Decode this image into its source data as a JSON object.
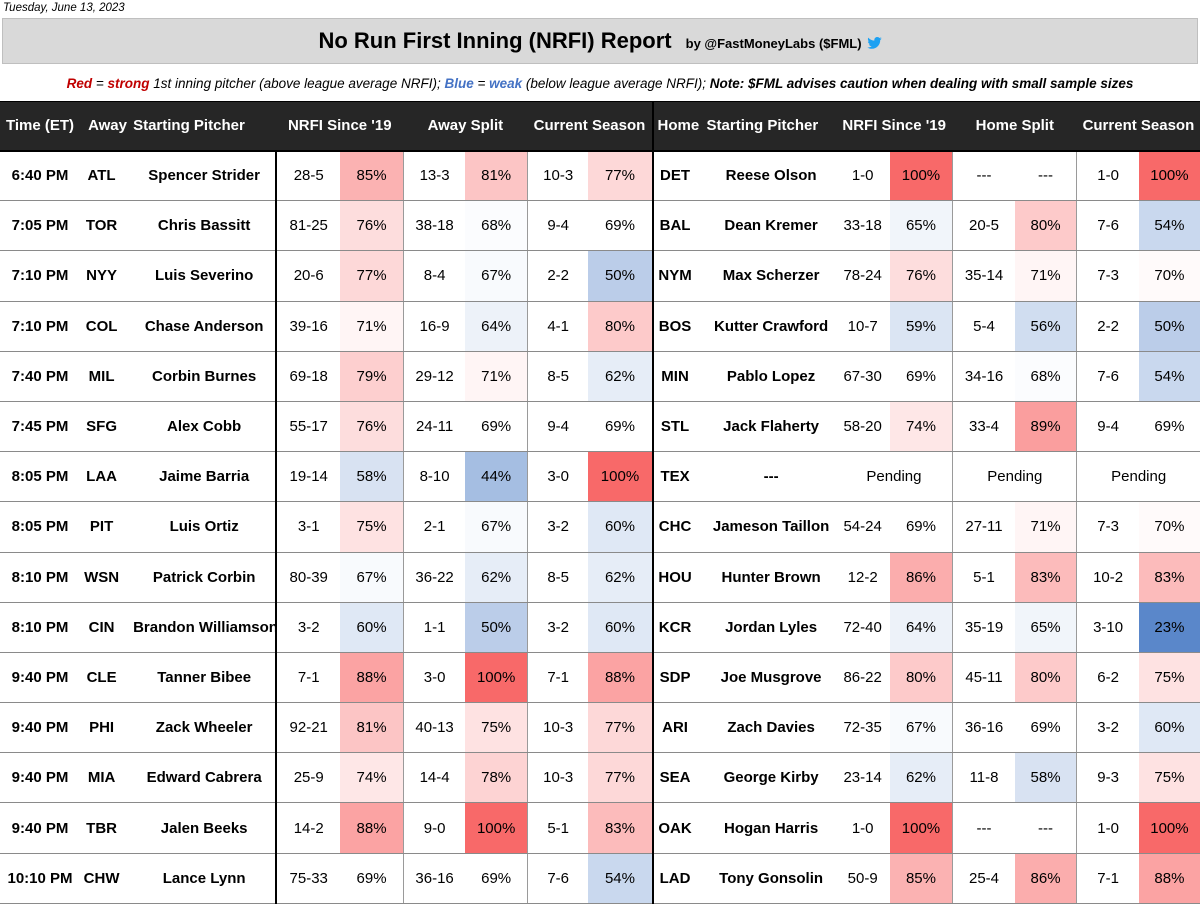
{
  "date": "Tuesday, June 13, 2023",
  "title": "No Run First Inning (NRFI) Report",
  "byline": "by @FastMoneyLabs ($FML)",
  "byline_icon": "twitter-bird-icon",
  "legend": {
    "red_word": "Red",
    "eq1": " = ",
    "strong": "strong",
    "red_desc": " 1st inning pitcher (above league average NRFI); ",
    "blue_word": "Blue",
    "eq2": " = ",
    "weak": "weak",
    "blue_desc": " (below league average NRFI); ",
    "note": "Note: $FML advises caution when dealing with small sample sizes"
  },
  "colors": {
    "header_bg": "#262626",
    "title_bg": "#d9d9d9",
    "strong_red": "#c00000",
    "weak_blue": "#4472c4"
  },
  "headers": {
    "time": "Time (ET)",
    "away": "Away",
    "away_pitcher": "Starting Pitcher",
    "away_nrfi": "NRFI Since '19",
    "away_split": "Away Split",
    "away_season": "Current Season",
    "home": "Home",
    "home_pitcher": "Starting Pitcher",
    "home_nrfi": "NRFI Since '19",
    "home_split": "Home Split",
    "home_season": "Current Season"
  },
  "rows": [
    {
      "time": "6:40 PM",
      "away": "ATL",
      "ap": "Spencer Strider",
      "an": "28-5",
      "anp": "85%",
      "as": "13-3",
      "asp": "81%",
      "ac": "10-3",
      "acp": "77%",
      "home": "DET",
      "hp": "Reese Olson",
      "hn": "1-0",
      "hnp": "100%",
      "hs": "---",
      "hsp": "---",
      "hc": "1-0",
      "hcp": "100%"
    },
    {
      "time": "7:05 PM",
      "away": "TOR",
      "ap": "Chris Bassitt",
      "an": "81-25",
      "anp": "76%",
      "as": "38-18",
      "asp": "68%",
      "ac": "9-4",
      "acp": "69%",
      "home": "BAL",
      "hp": "Dean Kremer",
      "hn": "33-18",
      "hnp": "65%",
      "hs": "20-5",
      "hsp": "80%",
      "hc": "7-6",
      "hcp": "54%"
    },
    {
      "time": "7:10 PM",
      "away": "NYY",
      "ap": "Luis Severino",
      "an": "20-6",
      "anp": "77%",
      "as": "8-4",
      "asp": "67%",
      "ac": "2-2",
      "acp": "50%",
      "home": "NYM",
      "hp": "Max Scherzer",
      "hn": "78-24",
      "hnp": "76%",
      "hs": "35-14",
      "hsp": "71%",
      "hc": "7-3",
      "hcp": "70%"
    },
    {
      "time": "7:10 PM",
      "away": "COL",
      "ap": "Chase Anderson",
      "an": "39-16",
      "anp": "71%",
      "as": "16-9",
      "asp": "64%",
      "ac": "4-1",
      "acp": "80%",
      "home": "BOS",
      "hp": "Kutter Crawford",
      "hn": "10-7",
      "hnp": "59%",
      "hs": "5-4",
      "hsp": "56%",
      "hc": "2-2",
      "hcp": "50%"
    },
    {
      "time": "7:40 PM",
      "away": "MIL",
      "ap": "Corbin Burnes",
      "an": "69-18",
      "anp": "79%",
      "as": "29-12",
      "asp": "71%",
      "ac": "8-5",
      "acp": "62%",
      "home": "MIN",
      "hp": "Pablo Lopez",
      "hn": "67-30",
      "hnp": "69%",
      "hs": "34-16",
      "hsp": "68%",
      "hc": "7-6",
      "hcp": "54%"
    },
    {
      "time": "7:45 PM",
      "away": "SFG",
      "ap": "Alex Cobb",
      "an": "55-17",
      "anp": "76%",
      "as": "24-11",
      "asp": "69%",
      "ac": "9-4",
      "acp": "69%",
      "home": "STL",
      "hp": "Jack Flaherty",
      "hn": "58-20",
      "hnp": "74%",
      "hs": "33-4",
      "hsp": "89%",
      "hc": "9-4",
      "hcp": "69%"
    },
    {
      "time": "8:05 PM",
      "away": "LAA",
      "ap": "Jaime Barria",
      "an": "19-14",
      "anp": "58%",
      "as": "8-10",
      "asp": "44%",
      "ac": "3-0",
      "acp": "100%",
      "home": "TEX",
      "hp": "---",
      "pending": true,
      "pending_text": "Pending"
    },
    {
      "time": "8:05 PM",
      "away": "PIT",
      "ap": "Luis Ortiz",
      "an": "3-1",
      "anp": "75%",
      "as": "2-1",
      "asp": "67%",
      "ac": "3-2",
      "acp": "60%",
      "home": "CHC",
      "hp": "Jameson Taillon",
      "hn": "54-24",
      "hnp": "69%",
      "hs": "27-11",
      "hsp": "71%",
      "hc": "7-3",
      "hcp": "70%"
    },
    {
      "time": "8:10 PM",
      "away": "WSN",
      "ap": "Patrick Corbin",
      "an": "80-39",
      "anp": "67%",
      "as": "36-22",
      "asp": "62%",
      "ac": "8-5",
      "acp": "62%",
      "home": "HOU",
      "hp": "Hunter Brown",
      "hn": "12-2",
      "hnp": "86%",
      "hs": "5-1",
      "hsp": "83%",
      "hc": "10-2",
      "hcp": "83%"
    },
    {
      "time": "8:10 PM",
      "away": "CIN",
      "ap": "Brandon Williamson",
      "an": "3-2",
      "anp": "60%",
      "as": "1-1",
      "asp": "50%",
      "ac": "3-2",
      "acp": "60%",
      "home": "KCR",
      "hp": "Jordan Lyles",
      "hn": "72-40",
      "hnp": "64%",
      "hs": "35-19",
      "hsp": "65%",
      "hc": "3-10",
      "hcp": "23%"
    },
    {
      "time": "9:40 PM",
      "away": "CLE",
      "ap": "Tanner Bibee",
      "an": "7-1",
      "anp": "88%",
      "as": "3-0",
      "asp": "100%",
      "ac": "7-1",
      "acp": "88%",
      "home": "SDP",
      "hp": "Joe Musgrove",
      "hn": "86-22",
      "hnp": "80%",
      "hs": "45-11",
      "hsp": "80%",
      "hc": "6-2",
      "hcp": "75%"
    },
    {
      "time": "9:40 PM",
      "away": "PHI",
      "ap": "Zack Wheeler",
      "an": "92-21",
      "anp": "81%",
      "as": "40-13",
      "asp": "75%",
      "ac": "10-3",
      "acp": "77%",
      "home": "ARI",
      "hp": "Zach Davies",
      "hn": "72-35",
      "hnp": "67%",
      "hs": "36-16",
      "hsp": "69%",
      "hc": "3-2",
      "hcp": "60%"
    },
    {
      "time": "9:40 PM",
      "away": "MIA",
      "ap": "Edward Cabrera",
      "an": "25-9",
      "anp": "74%",
      "as": "14-4",
      "asp": "78%",
      "ac": "10-3",
      "acp": "77%",
      "home": "SEA",
      "hp": "George Kirby",
      "hn": "23-14",
      "hnp": "62%",
      "hs": "11-8",
      "hsp": "58%",
      "hc": "9-3",
      "hcp": "75%"
    },
    {
      "time": "9:40 PM",
      "away": "TBR",
      "ap": "Jalen Beeks",
      "an": "14-2",
      "anp": "88%",
      "as": "9-0",
      "asp": "100%",
      "ac": "5-1",
      "acp": "83%",
      "home": "OAK",
      "hp": "Hogan Harris",
      "hn": "1-0",
      "hnp": "100%",
      "hs": "---",
      "hsp": "---",
      "hc": "1-0",
      "hcp": "100%"
    },
    {
      "time": "10:10 PM",
      "away": "CHW",
      "ap": "Lance Lynn",
      "an": "75-33",
      "anp": "69%",
      "as": "36-16",
      "asp": "69%",
      "ac": "7-6",
      "acp": "54%",
      "home": "LAD",
      "hp": "Tony Gonsolin",
      "hn": "50-9",
      "hnp": "85%",
      "hs": "25-4",
      "hsp": "86%",
      "hc": "7-1",
      "hcp": "88%"
    }
  ]
}
